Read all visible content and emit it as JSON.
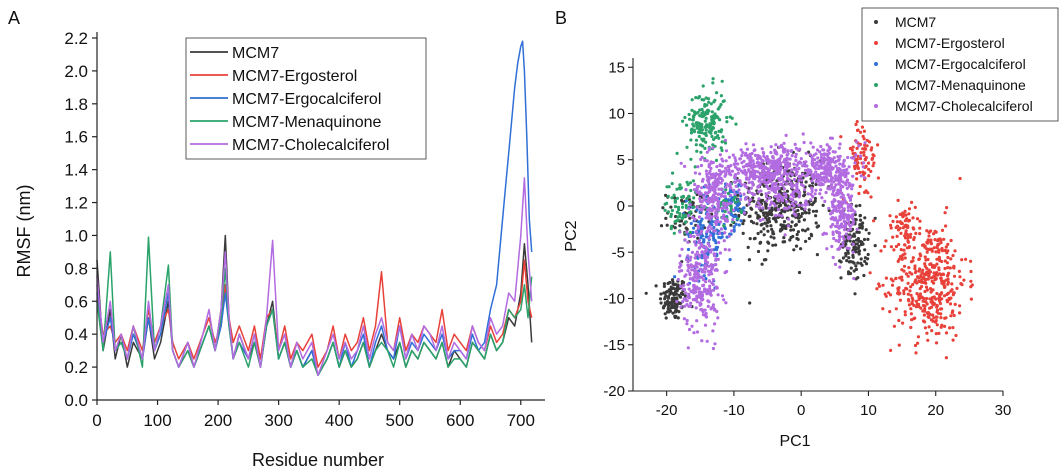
{
  "panel_labels": {
    "a": "A",
    "b": "B"
  },
  "chart_data": [
    {
      "type": "line",
      "panel": "A",
      "xlabel": "Residue number",
      "ylabel": "RMSF (nm)",
      "xlim": [
        0,
        740
      ],
      "ylim": [
        0.0,
        2.2
      ],
      "x_ticks": [
        0,
        100,
        200,
        300,
        400,
        500,
        600,
        700
      ],
      "y_ticks": [
        0.0,
        0.2,
        0.4,
        0.6,
        0.8,
        1.0,
        1.2,
        1.4,
        1.6,
        1.8,
        2.0,
        2.2
      ],
      "y_tick_labels": [
        "0.0",
        "0.2",
        "0.4",
        "0.6",
        "0.8",
        "1.0",
        "1.2",
        "1.4",
        "1.6",
        "1.8",
        "2.0",
        "2.2"
      ],
      "legend_position": "top-center",
      "grid": false,
      "series": [
        {
          "name": "MCM7",
          "color": "#3a3a3a",
          "x": [
            0,
            10,
            22,
            30,
            40,
            50,
            60,
            75,
            85,
            95,
            105,
            118,
            125,
            135,
            150,
            160,
            175,
            185,
            195,
            205,
            212,
            218,
            225,
            235,
            250,
            260,
            270,
            280,
            290,
            300,
            310,
            320,
            330,
            340,
            355,
            365,
            380,
            390,
            400,
            410,
            420,
            430,
            440,
            450,
            460,
            470,
            480,
            490,
            500,
            510,
            520,
            530,
            540,
            550,
            560,
            570,
            580,
            590,
            600,
            610,
            620,
            630,
            640,
            650,
            660,
            670,
            680,
            690,
            700,
            706,
            712,
            718
          ],
          "y": [
            0.85,
            0.3,
            0.55,
            0.25,
            0.4,
            0.2,
            0.35,
            0.25,
            0.5,
            0.25,
            0.35,
            0.6,
            0.3,
            0.2,
            0.3,
            0.2,
            0.35,
            0.45,
            0.3,
            0.55,
            1.0,
            0.5,
            0.25,
            0.4,
            0.25,
            0.35,
            0.2,
            0.45,
            0.6,
            0.25,
            0.35,
            0.2,
            0.3,
            0.2,
            0.3,
            0.15,
            0.25,
            0.35,
            0.2,
            0.3,
            0.2,
            0.25,
            0.35,
            0.2,
            0.3,
            0.4,
            0.3,
            0.25,
            0.35,
            0.2,
            0.3,
            0.25,
            0.35,
            0.3,
            0.25,
            0.35,
            0.2,
            0.3,
            0.25,
            0.2,
            0.35,
            0.3,
            0.25,
            0.4,
            0.3,
            0.35,
            0.5,
            0.45,
            0.65,
            0.95,
            0.7,
            0.35
          ]
        },
        {
          "name": "MCM7-Ergosterol",
          "color": "#e8413a",
          "x": [
            0,
            10,
            22,
            30,
            40,
            50,
            60,
            75,
            85,
            95,
            105,
            118,
            125,
            135,
            150,
            160,
            175,
            185,
            195,
            205,
            212,
            218,
            225,
            235,
            250,
            260,
            270,
            280,
            290,
            300,
            310,
            320,
            330,
            340,
            355,
            365,
            380,
            390,
            400,
            410,
            420,
            430,
            440,
            450,
            460,
            470,
            480,
            490,
            500,
            510,
            520,
            530,
            540,
            550,
            560,
            570,
            580,
            590,
            600,
            610,
            620,
            630,
            640,
            650,
            660,
            670,
            680,
            690,
            700,
            706,
            712,
            718
          ],
          "y": [
            0.65,
            0.4,
            0.45,
            0.35,
            0.4,
            0.3,
            0.45,
            0.3,
            0.55,
            0.35,
            0.45,
            0.55,
            0.35,
            0.25,
            0.35,
            0.25,
            0.4,
            0.5,
            0.35,
            0.45,
            0.7,
            0.5,
            0.35,
            0.45,
            0.3,
            0.45,
            0.25,
            0.5,
            0.55,
            0.3,
            0.45,
            0.25,
            0.35,
            0.3,
            0.4,
            0.2,
            0.3,
            0.45,
            0.25,
            0.4,
            0.3,
            0.35,
            0.5,
            0.3,
            0.45,
            0.78,
            0.35,
            0.3,
            0.5,
            0.3,
            0.4,
            0.35,
            0.45,
            0.4,
            0.35,
            0.55,
            0.3,
            0.4,
            0.35,
            0.3,
            0.45,
            0.35,
            0.3,
            0.45,
            0.35,
            0.4,
            0.55,
            0.5,
            0.6,
            0.85,
            0.6,
            0.5
          ]
        },
        {
          "name": "MCM7-Ergocalciferol",
          "color": "#2f6fd6",
          "x": [
            0,
            10,
            22,
            30,
            40,
            50,
            60,
            75,
            85,
            95,
            105,
            118,
            125,
            135,
            150,
            160,
            175,
            185,
            195,
            205,
            212,
            218,
            225,
            235,
            250,
            260,
            270,
            280,
            290,
            300,
            310,
            320,
            330,
            340,
            355,
            365,
            380,
            390,
            400,
            410,
            420,
            430,
            440,
            450,
            460,
            470,
            480,
            490,
            500,
            510,
            520,
            530,
            540,
            550,
            560,
            570,
            580,
            590,
            600,
            610,
            620,
            630,
            640,
            650,
            660,
            665,
            670,
            675,
            680,
            685,
            690,
            695,
            700,
            703,
            706,
            710,
            714,
            718
          ],
          "y": [
            0.7,
            0.35,
            0.5,
            0.3,
            0.35,
            0.25,
            0.4,
            0.25,
            0.5,
            0.3,
            0.4,
            0.65,
            0.3,
            0.2,
            0.35,
            0.2,
            0.35,
            0.45,
            0.3,
            0.45,
            0.65,
            0.45,
            0.25,
            0.35,
            0.25,
            0.4,
            0.2,
            0.45,
            0.55,
            0.25,
            0.35,
            0.2,
            0.3,
            0.2,
            0.3,
            0.15,
            0.25,
            0.35,
            0.2,
            0.35,
            0.2,
            0.3,
            0.4,
            0.2,
            0.35,
            0.45,
            0.3,
            0.25,
            0.45,
            0.25,
            0.35,
            0.3,
            0.4,
            0.35,
            0.3,
            0.4,
            0.25,
            0.3,
            0.3,
            0.25,
            0.4,
            0.3,
            0.35,
            0.55,
            0.7,
            0.9,
            1.1,
            1.3,
            1.5,
            1.7,
            1.9,
            2.05,
            2.15,
            2.18,
            2.0,
            1.6,
            1.1,
            0.9
          ]
        },
        {
          "name": "MCM7-Menaquinone",
          "color": "#2aa26a",
          "x": [
            0,
            10,
            22,
            30,
            40,
            50,
            60,
            75,
            85,
            95,
            105,
            118,
            125,
            135,
            150,
            160,
            175,
            185,
            195,
            205,
            212,
            218,
            225,
            235,
            250,
            260,
            270,
            280,
            290,
            300,
            310,
            320,
            330,
            340,
            355,
            365,
            380,
            390,
            400,
            410,
            420,
            430,
            440,
            450,
            460,
            470,
            480,
            490,
            500,
            510,
            520,
            530,
            540,
            550,
            560,
            570,
            580,
            590,
            600,
            610,
            620,
            630,
            640,
            650,
            660,
            670,
            680,
            690,
            700,
            706,
            712,
            718
          ],
          "y": [
            0.6,
            0.3,
            0.9,
            0.3,
            0.35,
            0.25,
            0.45,
            0.2,
            0.99,
            0.3,
            0.45,
            0.82,
            0.3,
            0.2,
            0.3,
            0.2,
            0.35,
            0.45,
            0.3,
            0.5,
            0.8,
            0.45,
            0.25,
            0.35,
            0.2,
            0.35,
            0.2,
            0.45,
            0.55,
            0.25,
            0.35,
            0.2,
            0.3,
            0.2,
            0.25,
            0.15,
            0.25,
            0.35,
            0.2,
            0.3,
            0.2,
            0.25,
            0.35,
            0.2,
            0.3,
            0.35,
            0.3,
            0.2,
            0.35,
            0.2,
            0.3,
            0.25,
            0.35,
            0.3,
            0.25,
            0.35,
            0.2,
            0.25,
            0.25,
            0.2,
            0.35,
            0.3,
            0.25,
            0.4,
            0.3,
            0.35,
            0.55,
            0.5,
            0.55,
            0.7,
            0.5,
            0.75
          ]
        },
        {
          "name": "MCM7-Cholecalciferol",
          "color": "#b26be0",
          "x": [
            0,
            10,
            22,
            30,
            40,
            50,
            60,
            75,
            85,
            95,
            105,
            118,
            125,
            135,
            150,
            160,
            175,
            185,
            195,
            205,
            212,
            218,
            225,
            235,
            250,
            260,
            270,
            280,
            290,
            300,
            310,
            320,
            330,
            340,
            355,
            365,
            380,
            390,
            400,
            410,
            420,
            430,
            440,
            450,
            460,
            470,
            480,
            490,
            500,
            510,
            520,
            530,
            540,
            550,
            560,
            570,
            580,
            590,
            600,
            610,
            620,
            630,
            640,
            650,
            660,
            670,
            680,
            690,
            700,
            706,
            712,
            718
          ],
          "y": [
            0.75,
            0.35,
            0.6,
            0.3,
            0.4,
            0.25,
            0.45,
            0.25,
            0.6,
            0.3,
            0.45,
            0.7,
            0.3,
            0.2,
            0.35,
            0.2,
            0.4,
            0.55,
            0.3,
            0.55,
            0.9,
            0.5,
            0.25,
            0.4,
            0.25,
            0.4,
            0.2,
            0.5,
            0.97,
            0.3,
            0.4,
            0.2,
            0.35,
            0.25,
            0.35,
            0.15,
            0.3,
            0.4,
            0.25,
            0.35,
            0.25,
            0.3,
            0.45,
            0.25,
            0.4,
            0.5,
            0.35,
            0.3,
            0.45,
            0.25,
            0.4,
            0.3,
            0.45,
            0.4,
            0.3,
            0.45,
            0.25,
            0.35,
            0.3,
            0.25,
            0.45,
            0.35,
            0.3,
            0.5,
            0.4,
            0.45,
            0.65,
            0.6,
            1.0,
            1.35,
            0.9,
            0.6
          ]
        }
      ]
    },
    {
      "type": "scatter",
      "panel": "B",
      "xlabel": "PC1",
      "ylabel": "PC2",
      "xlim": [
        -25,
        30
      ],
      "ylim": [
        -20,
        16
      ],
      "x_ticks": [
        -20,
        -10,
        0,
        10,
        20,
        30
      ],
      "y_ticks": [
        -20,
        -15,
        -10,
        -5,
        0,
        5,
        10,
        15
      ],
      "legend_position": "top-right",
      "grid": false,
      "series": [
        {
          "name": "MCM7",
          "color": "#3a3a3a",
          "clusters": [
            {
              "cx": -19,
              "cy": -10,
              "sx": 1.0,
              "sy": 1.2,
              "n": 120
            },
            {
              "cx": -3,
              "cy": 0,
              "sx": 3.0,
              "sy": 2.5,
              "n": 380
            },
            {
              "cx": 8,
              "cy": -4,
              "sx": 1.0,
              "sy": 2.0,
              "n": 120
            },
            {
              "cx": -17,
              "cy": -1,
              "sx": 1.5,
              "sy": 1.3,
              "n": 60
            }
          ]
        },
        {
          "name": "MCM7-Ergosterol",
          "color": "#e8413a",
          "clusters": [
            {
              "cx": 9,
              "cy": 5,
              "sx": 1.3,
              "sy": 2.2,
              "n": 80
            },
            {
              "cx": 19,
              "cy": -8,
              "sx": 2.8,
              "sy": 3.2,
              "n": 420
            },
            {
              "cx": 15,
              "cy": -2,
              "sx": 1.0,
              "sy": 1.2,
              "n": 50
            }
          ]
        },
        {
          "name": "MCM7-Ergocalciferol",
          "color": "#2f6fd6",
          "clusters": [
            {
              "cx": -14,
              "cy": -3,
              "sx": 1.5,
              "sy": 2.2,
              "n": 140
            },
            {
              "cx": -10,
              "cy": 0,
              "sx": 1.0,
              "sy": 1.3,
              "n": 70
            }
          ]
        },
        {
          "name": "MCM7-Menaquinone",
          "color": "#2aa26a",
          "clusters": [
            {
              "cx": -14,
              "cy": 9,
              "sx": 1.5,
              "sy": 1.8,
              "n": 170
            },
            {
              "cx": -18,
              "cy": 0,
              "sx": 1.2,
              "sy": 1.5,
              "n": 70
            },
            {
              "cx": -11,
              "cy": 0,
              "sx": 1.0,
              "sy": 1.0,
              "n": 40
            }
          ]
        },
        {
          "name": "MCM7-Cholecalciferol",
          "color": "#b26be0",
          "clusters": [
            {
              "cx": -15,
              "cy": -8,
              "sx": 1.5,
              "sy": 2.8,
              "n": 260
            },
            {
              "cx": -13,
              "cy": 1,
              "sx": 1.5,
              "sy": 2.2,
              "n": 220
            },
            {
              "cx": -5,
              "cy": 4,
              "sx": 4.0,
              "sy": 1.3,
              "n": 420
            },
            {
              "cx": 4,
              "cy": 4,
              "sx": 2.2,
              "sy": 1.3,
              "n": 200
            },
            {
              "cx": 6,
              "cy": -1,
              "sx": 1.1,
              "sy": 2.0,
              "n": 200
            },
            {
              "cx": -3,
              "cy": 1,
              "sx": 3.0,
              "sy": 1.2,
              "n": 120
            }
          ]
        }
      ]
    }
  ]
}
